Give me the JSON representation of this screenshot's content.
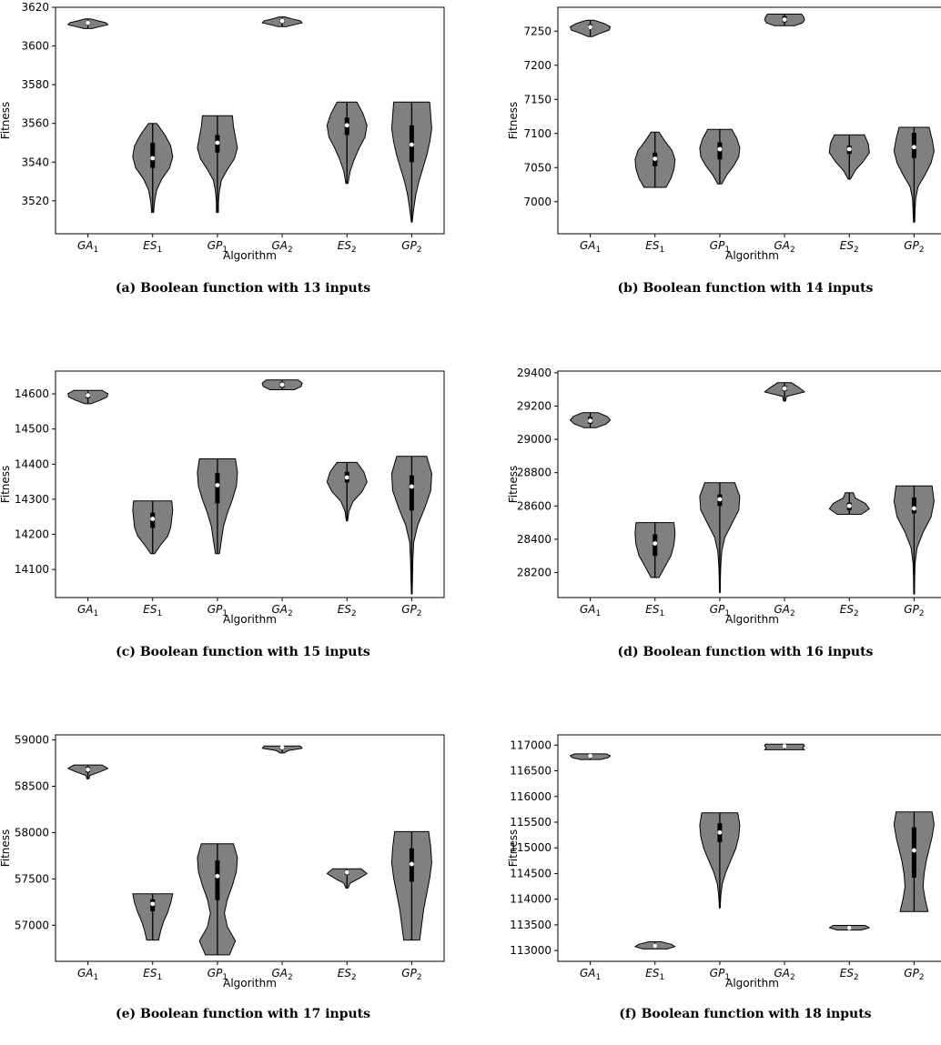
{
  "chart_data": [
    {
      "type": "violin",
      "caption": "(a) Boolean function with 13 inputs",
      "xlabel": "Algorithm",
      "ylabel": "Fitness",
      "categories": [
        "GA1",
        "ES1",
        "GP1",
        "GA2",
        "ES2",
        "GP2"
      ],
      "ylim": [
        3503,
        3620
      ],
      "yticks": [
        3520,
        3540,
        3560,
        3580,
        3600,
        3620
      ],
      "violins": [
        {
          "min": 3609,
          "max": 3614,
          "q1": 3611,
          "q3": 3613,
          "median": 3612,
          "profile": [
            0.2,
            0.6,
            1.0,
            0.9,
            0.5,
            0.15
          ]
        },
        {
          "min": 3514,
          "max": 3560,
          "q1": 3537,
          "q3": 3550,
          "median": 3542,
          "profile": [
            0.05,
            0.1,
            0.2,
            0.45,
            0.85,
            1.0,
            0.9,
            0.6,
            0.2
          ]
        },
        {
          "min": 3514,
          "max": 3564,
          "q1": 3545,
          "q3": 3554,
          "median": 3550,
          "profile": [
            0.05,
            0.05,
            0.1,
            0.2,
            0.5,
            0.85,
            1.0,
            0.9,
            0.8,
            0.75
          ]
        },
        {
          "min": 3610,
          "max": 3615,
          "q1": 3612,
          "q3": 3614,
          "median": 3613,
          "profile": [
            0.2,
            0.6,
            1.0,
            0.9,
            0.5,
            0.15
          ]
        },
        {
          "min": 3529,
          "max": 3571,
          "q1": 3554,
          "q3": 3563,
          "median": 3559,
          "profile": [
            0.05,
            0.15,
            0.35,
            0.6,
            0.9,
            1.0,
            0.8,
            0.5
          ]
        },
        {
          "min": 3509,
          "max": 3571,
          "q1": 3540,
          "q3": 3559,
          "median": 3549,
          "profile": [
            0.02,
            0.1,
            0.2,
            0.35,
            0.55,
            0.75,
            0.9,
            1.0,
            0.95,
            0.9
          ]
        }
      ]
    },
    {
      "type": "violin",
      "caption": "(b) Boolean function with 14 inputs",
      "xlabel": "Algorithm",
      "ylabel": "Fitness",
      "categories": [
        "GA1",
        "ES1",
        "GP1",
        "GA2",
        "ES2",
        "GP2"
      ],
      "ylim": [
        6953,
        7285
      ],
      "yticks": [
        7000,
        7050,
        7100,
        7150,
        7200,
        7250
      ],
      "violins": [
        {
          "min": 7242,
          "max": 7266,
          "q1": 7253,
          "q3": 7260,
          "median": 7256,
          "profile": [
            0.1,
            0.5,
            0.95,
            1.0,
            0.7,
            0.2
          ]
        },
        {
          "min": 7021,
          "max": 7102,
          "q1": 7052,
          "q3": 7072,
          "median": 7063,
          "profile": [
            0.55,
            0.8,
            0.95,
            1.0,
            0.85,
            0.5,
            0.2
          ]
        },
        {
          "min": 7026,
          "max": 7106,
          "q1": 7062,
          "q3": 7087,
          "median": 7077,
          "profile": [
            0.1,
            0.35,
            0.7,
            0.95,
            1.0,
            0.85,
            0.6
          ]
        },
        {
          "min": 7258,
          "max": 7275,
          "q1": 7263,
          "q3": 7272,
          "median": 7267,
          "profile": [
            0.5,
            0.9,
            1.0,
            0.95,
            0.85
          ]
        },
        {
          "min": 7033,
          "max": 7098,
          "q1": 7070,
          "q3": 7082,
          "median": 7077,
          "profile": [
            0.05,
            0.3,
            0.7,
            1.0,
            0.95,
            0.75
          ]
        },
        {
          "min": 6970,
          "max": 7109,
          "q1": 7064,
          "q3": 7101,
          "median": 7080,
          "profile": [
            0.03,
            0.05,
            0.08,
            0.2,
            0.55,
            0.85,
            1.0,
            0.9,
            0.75
          ]
        }
      ]
    },
    {
      "type": "violin",
      "caption": "(c) Boolean function with 15 inputs",
      "xlabel": "Algorithm",
      "ylabel": "Fitness",
      "categories": [
        "GA1",
        "ES1",
        "GP1",
        "GA2",
        "ES2",
        "GP2"
      ],
      "ylim": [
        14020,
        14665
      ],
      "yticks": [
        14100,
        14200,
        14300,
        14400,
        14500,
        14600
      ],
      "violins": [
        {
          "min": 14572,
          "max": 14610,
          "q1": 14588,
          "q3": 14602,
          "median": 14596,
          "profile": [
            0.15,
            0.6,
            0.95,
            1.0,
            0.7
          ]
        },
        {
          "min": 14145,
          "max": 14295,
          "q1": 14218,
          "q3": 14262,
          "median": 14244,
          "profile": [
            0.1,
            0.4,
            0.75,
            0.9,
            0.95,
            1.0,
            0.95
          ]
        },
        {
          "min": 14145,
          "max": 14415,
          "q1": 14288,
          "q3": 14375,
          "median": 14340,
          "profile": [
            0.1,
            0.2,
            0.3,
            0.5,
            0.75,
            0.95,
            1.0,
            0.9
          ]
        },
        {
          "min": 14612,
          "max": 14640,
          "q1": 14618,
          "q3": 14633,
          "median": 14626,
          "profile": [
            0.6,
            0.95,
            1.0,
            0.8
          ]
        },
        {
          "min": 14238,
          "max": 14405,
          "q1": 14348,
          "q3": 14378,
          "median": 14362,
          "profile": [
            0.03,
            0.1,
            0.3,
            0.75,
            1.0,
            0.85,
            0.5
          ]
        },
        {
          "min": 14030,
          "max": 14422,
          "q1": 14268,
          "q3": 14368,
          "median": 14336,
          "profile": [
            0.02,
            0.04,
            0.06,
            0.1,
            0.3,
            0.65,
            0.95,
            1.0,
            0.75
          ]
        }
      ]
    },
    {
      "type": "violin",
      "caption": "(d) Boolean function with 16 inputs",
      "xlabel": "Algorithm",
      "ylabel": "Fitness",
      "categories": [
        "GA1",
        "ES1",
        "GP1",
        "GA2",
        "ES2",
        "GP2"
      ],
      "ylim": [
        28050,
        29410
      ],
      "yticks": [
        28200,
        28400,
        28600,
        28800,
        29000,
        29200,
        29400
      ],
      "violins": [
        {
          "min": 29070,
          "max": 29160,
          "q1": 29095,
          "q3": 29135,
          "median": 29112,
          "profile": [
            0.3,
            0.8,
            1.0,
            0.85,
            0.4
          ]
        },
        {
          "min": 28170,
          "max": 28500,
          "q1": 28300,
          "q3": 28430,
          "median": 28375,
          "profile": [
            0.2,
            0.5,
            0.8,
            0.95,
            1.0,
            0.95
          ]
        },
        {
          "min": 28080,
          "max": 28740,
          "q1": 28600,
          "q3": 28670,
          "median": 28640,
          "profile": [
            0.02,
            0.03,
            0.05,
            0.1,
            0.25,
            0.6,
            0.95,
            1.0,
            0.75
          ]
        },
        {
          "min": 29230,
          "max": 29340,
          "q1": 29290,
          "q3": 29320,
          "median": 29305,
          "profile": [
            0.05,
            0.1,
            1.0,
            0.7,
            0.35
          ]
        },
        {
          "min": 28550,
          "max": 28680,
          "q1": 28575,
          "q3": 28620,
          "median": 28600,
          "profile": [
            0.6,
            1.0,
            0.8,
            0.3,
            0.2
          ]
        },
        {
          "min": 28070,
          "max": 28720,
          "q1": 28555,
          "q3": 28650,
          "median": 28585,
          "profile": [
            0.02,
            0.03,
            0.05,
            0.15,
            0.45,
            0.85,
            1.0,
            0.9
          ]
        }
      ]
    },
    {
      "type": "violin",
      "caption": "(e) Boolean function with 17 inputs",
      "xlabel": "Algorithm",
      "ylabel": "Fitness",
      "categories": [
        "GA1",
        "ES1",
        "GP1",
        "GA2",
        "ES2",
        "GP2"
      ],
      "ylim": [
        56610,
        59055
      ],
      "yticks": [
        57000,
        57500,
        58000,
        58500,
        59000
      ],
      "violins": [
        {
          "min": 58580,
          "max": 58730,
          "q1": 58650,
          "q3": 58710,
          "median": 58680,
          "profile": [
            0.05,
            0.1,
            0.6,
            1.0,
            0.7
          ]
        },
        {
          "min": 56840,
          "max": 57340,
          "q1": 57150,
          "q3": 57280,
          "median": 57230,
          "profile": [
            0.3,
            0.4,
            0.55,
            0.75,
            0.9,
            1.0
          ]
        },
        {
          "min": 56680,
          "max": 57880,
          "q1": 57270,
          "q3": 57700,
          "median": 57530,
          "profile": [
            0.6,
            0.9,
            0.5,
            0.35,
            0.5,
            0.75,
            0.95,
            1.0,
            0.8
          ]
        },
        {
          "min": 58860,
          "max": 58935,
          "q1": 58900,
          "q3": 58930,
          "median": 58920,
          "profile": [
            0.1,
            0.3,
            1.0,
            0.9
          ]
        },
        {
          "min": 57400,
          "max": 57610,
          "q1": 57545,
          "q3": 57590,
          "median": 57570,
          "profile": [
            0.05,
            0.15,
            0.6,
            1.0,
            0.7
          ]
        },
        {
          "min": 56840,
          "max": 58010,
          "q1": 57470,
          "q3": 57830,
          "median": 57660,
          "profile": [
            0.4,
            0.5,
            0.6,
            0.75,
            0.9,
            1.0,
            0.95,
            0.85
          ]
        }
      ]
    },
    {
      "type": "violin",
      "caption": "(f) Boolean function with 18 inputs",
      "xlabel": "Algorithm",
      "ylabel": "Fitness",
      "categories": [
        "GA1",
        "ES1",
        "GP1",
        "GA2",
        "ES2",
        "GP2"
      ],
      "ylim": [
        112790,
        117200
      ],
      "yticks": [
        113000,
        113500,
        114000,
        114500,
        115000,
        115500,
        116000,
        116500,
        117000
      ],
      "violins": [
        {
          "min": 116720,
          "max": 116830,
          "q1": 116760,
          "q3": 116810,
          "median": 116790,
          "profile": [
            0.5,
            0.9,
            1.0,
            0.8
          ]
        },
        {
          "min": 113030,
          "max": 113170,
          "q1": 113060,
          "q3": 113120,
          "median": 113090,
          "profile": [
            0.6,
            1.0,
            0.8,
            0.3
          ]
        },
        {
          "min": 113830,
          "max": 115680,
          "q1": 115110,
          "q3": 115480,
          "median": 115300,
          "profile": [
            0.02,
            0.05,
            0.12,
            0.3,
            0.55,
            0.8,
            0.95,
            1.0,
            0.9
          ]
        },
        {
          "min": 116910,
          "max": 117020,
          "q1": 116950,
          "q3": 117000,
          "median": 116980,
          "profile": [
            1.0,
            0.9,
            1.0,
            0.95
          ]
        },
        {
          "min": 113400,
          "max": 113490,
          "q1": 113420,
          "q3": 113470,
          "median": 113440,
          "profile": [
            0.6,
            1.0,
            0.8
          ]
        },
        {
          "min": 113760,
          "max": 115700,
          "q1": 114420,
          "q3": 115400,
          "median": 114950,
          "profile": [
            0.7,
            0.55,
            0.45,
            0.5,
            0.6,
            0.75,
            0.9,
            1.0,
            0.9
          ]
        }
      ]
    }
  ]
}
